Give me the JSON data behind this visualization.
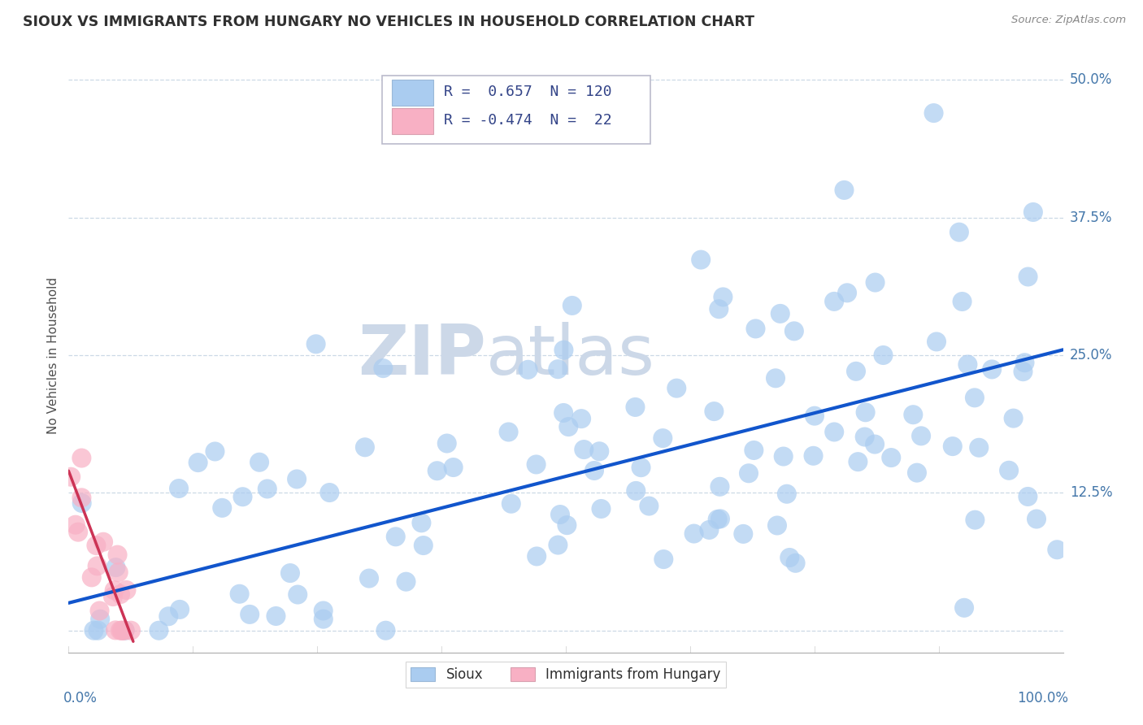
{
  "title": "SIOUX VS IMMIGRANTS FROM HUNGARY NO VEHICLES IN HOUSEHOLD CORRELATION CHART",
  "source_text": "Source: ZipAtlas.com",
  "ylabel": "No Vehicles in Household",
  "xlim": [
    0,
    1.0
  ],
  "ylim": [
    -0.02,
    0.52
  ],
  "yticks": [
    0.0,
    0.125,
    0.25,
    0.375,
    0.5
  ],
  "ytick_labels": [
    "",
    "12.5%",
    "25.0%",
    "37.5%",
    "50.0%"
  ],
  "legend1_r": "0.657",
  "legend1_n": "120",
  "legend2_r": "-0.474",
  "legend2_n": "22",
  "sioux_color": "#aaccf0",
  "hungary_color": "#f8b0c4",
  "trend_sioux_color": "#1155cc",
  "trend_hungary_color": "#cc3355",
  "watermark_zip": "ZIP",
  "watermark_atlas": "atlas",
  "watermark_color": "#ccd8e8",
  "background_color": "#ffffff",
  "grid_color": "#c0d0e0",
  "title_color": "#303030",
  "axis_label_color": "#4477aa",
  "legend_text_color": "#334488",
  "source_color": "#888888",
  "ylabel_color": "#505050",
  "sioux_trend_x": [
    0.0,
    1.0
  ],
  "sioux_trend_y": [
    0.025,
    0.255
  ],
  "hungary_trend_x": [
    0.0,
    0.065
  ],
  "hungary_trend_y": [
    0.145,
    -0.01
  ]
}
